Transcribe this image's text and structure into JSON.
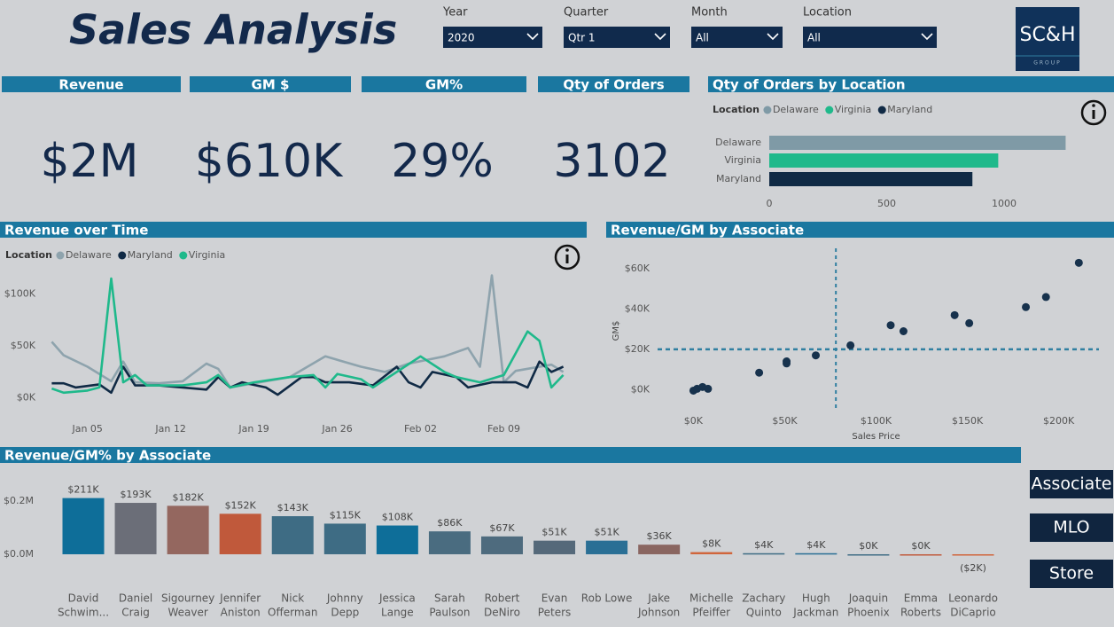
{
  "header": {
    "title": "Sales Analysis",
    "logo": "SC&H",
    "logo_subtitle": "GROUP"
  },
  "filters": [
    {
      "label": "Year",
      "value": "2020"
    },
    {
      "label": "Quarter",
      "value": "Qtr 1"
    },
    {
      "label": "Month",
      "value": "All"
    },
    {
      "label": "Location",
      "value": "All"
    }
  ],
  "kpis": [
    {
      "title": "Revenue",
      "value": "$2M"
    },
    {
      "title": "GM $",
      "value": "$610K"
    },
    {
      "title": "GM%",
      "value": "29%"
    },
    {
      "title": "Qty of Orders",
      "value": "3102"
    }
  ],
  "chart_data": [
    {
      "type": "bar",
      "orientation": "horizontal",
      "title": "Qty of Orders by Location",
      "legend_title": "Location",
      "categories": [
        "Delaware",
        "Virginia",
        "Maryland"
      ],
      "values": [
        1262,
        975,
        865
      ],
      "colors": [
        "#7f9aa6",
        "#1fb98b",
        "#102a45"
      ],
      "xlim": [
        0,
        1300
      ],
      "xticks": [
        0,
        500,
        1000
      ]
    },
    {
      "type": "line",
      "title": "Revenue over Time",
      "legend_title": "Location",
      "xlim": [
        1,
        46
      ],
      "xticks": [
        {
          "value": 5,
          "label": "Jan 05"
        },
        {
          "value": 12,
          "label": "Jan 12"
        },
        {
          "value": 19,
          "label": "Jan 19"
        },
        {
          "value": 26,
          "label": "Jan 26"
        },
        {
          "value": 33,
          "label": "Feb 02"
        },
        {
          "value": 40,
          "label": "Feb 09"
        }
      ],
      "ylim": [
        -14,
        127
      ],
      "yticks": [
        {
          "value": 0,
          "label": "$0K"
        },
        {
          "value": 50,
          "label": "$50K"
        },
        {
          "value": 100,
          "label": "$100K"
        }
      ],
      "series": [
        {
          "name": "Delaware",
          "color": "#8ea3ad",
          "x": [
            2,
            3,
            5,
            7,
            8,
            9,
            11,
            13,
            15,
            16,
            17,
            19,
            22,
            25,
            28,
            30,
            32,
            35,
            37,
            38,
            39,
            40,
            41,
            44,
            45
          ],
          "values": [
            54,
            41,
            30,
            16,
            35,
            15,
            14,
            16,
            33,
            28,
            10,
            14,
            20,
            40,
            30,
            25,
            33,
            40,
            48,
            30,
            118,
            15,
            26,
            32,
            25
          ]
        },
        {
          "name": "Maryland",
          "color": "#102a45",
          "x": [
            2,
            3,
            4,
            6,
            7,
            8,
            9,
            11,
            13,
            15,
            16,
            17,
            18,
            20,
            21,
            23,
            24,
            25,
            27,
            29,
            31,
            32,
            33,
            34,
            36,
            37,
            39,
            41,
            42,
            43,
            44,
            45
          ],
          "values": [
            14,
            14,
            10,
            13,
            5,
            30,
            12,
            12,
            10,
            8,
            20,
            10,
            15,
            10,
            3,
            20,
            20,
            15,
            15,
            12,
            30,
            15,
            10,
            25,
            20,
            10,
            15,
            15,
            10,
            35,
            25,
            30
          ]
        },
        {
          "name": "Virginia",
          "color": "#1fb98b",
          "x": [
            2,
            3,
            5,
            6,
            7,
            8,
            9,
            10,
            13,
            15,
            16,
            17,
            19,
            22,
            24,
            25,
            26,
            28,
            29,
            31,
            33,
            35,
            36,
            38,
            40,
            42,
            43,
            44,
            45
          ],
          "values": [
            9,
            5,
            7,
            10,
            115,
            15,
            22,
            12,
            12,
            15,
            22,
            10,
            15,
            20,
            22,
            10,
            23,
            18,
            10,
            25,
            40,
            25,
            20,
            15,
            22,
            64,
            55,
            10,
            22
          ]
        }
      ]
    },
    {
      "type": "scatter",
      "title": "Revenue/GM by Associate",
      "xlabel": "Sales Price",
      "ylabel": "GM$",
      "x": [
        0,
        2,
        5,
        8,
        36,
        51,
        51,
        67,
        86,
        108,
        115,
        143,
        151,
        182,
        193,
        211
      ],
      "values": [
        -0.5,
        0.4,
        1.3,
        0.4,
        8.4,
        14,
        13,
        17,
        22,
        32,
        29,
        37,
        33,
        41,
        46,
        63
      ],
      "color": "#17324d",
      "x_reference": 78,
      "y_reference": 20,
      "reference_color": "#2f7fa0",
      "xlim": [
        -23,
        222
      ],
      "xticks": [
        {
          "value": 0,
          "label": "$0K"
        },
        {
          "value": 50,
          "label": "$50K"
        },
        {
          "value": 100,
          "label": "$100K"
        },
        {
          "value": 150,
          "label": "$150K"
        },
        {
          "value": 200,
          "label": "$200K"
        }
      ],
      "ylim": [
        -10,
        68
      ],
      "yticks": [
        {
          "value": 0,
          "label": "$0K"
        },
        {
          "value": 20,
          "label": "$20K"
        },
        {
          "value": 40,
          "label": "$40K"
        },
        {
          "value": 60,
          "label": "$60K"
        }
      ]
    },
    {
      "type": "bar",
      "orientation": "vertical",
      "title": "Revenue/GM% by Associate",
      "categories": [
        [
          "David",
          "Schwim..."
        ],
        [
          "Daniel",
          "Craig"
        ],
        [
          "Sigourney",
          "Weaver"
        ],
        [
          "Jennifer",
          "Aniston"
        ],
        [
          "Nick",
          "Offerman"
        ],
        [
          "Johnny",
          "Depp"
        ],
        [
          "Jessica",
          "Lange"
        ],
        [
          "Sarah",
          "Paulson"
        ],
        [
          "Robert",
          "DeNiro"
        ],
        [
          "Evan",
          "Peters"
        ],
        [
          "Rob Lowe"
        ],
        [
          "Jake",
          "Johnson"
        ],
        [
          "Michelle",
          "Pfeiffer"
        ],
        [
          "Zachary",
          "Quinto"
        ],
        [
          "Hugh",
          "Jackman"
        ],
        [
          "Joaquin",
          "Phoenix"
        ],
        [
          "Emma",
          "Roberts"
        ],
        [
          "Leonardo",
          "DiCaprio"
        ]
      ],
      "values": [
        211,
        193,
        182,
        152,
        143,
        115,
        108,
        86,
        67,
        51,
        51,
        36,
        8,
        4,
        4,
        0,
        0,
        -2
      ],
      "value_labels": [
        "$211K",
        "$193K",
        "$182K",
        "$152K",
        "$143K",
        "$115K",
        "$108K",
        "$86K",
        "$67K",
        "$51K",
        "$51K",
        "$36K",
        "$8K",
        "$4K",
        "$4K",
        "$0K",
        "$0K",
        "($2K)"
      ],
      "colors": [
        "#0e6e99",
        "#6b6e78",
        "#94675f",
        "#c0593b",
        "#3e6c84",
        "#3e6c84",
        "#0e6e99",
        "#4a6c80",
        "#4e6b7e",
        "#55697a",
        "#2a6f95",
        "#8a6661",
        "#d0643a",
        "#3e6c84",
        "#2a6f95",
        "#3e6c84",
        "#c0593b",
        "#d0643a"
      ],
      "ylim": [
        -50,
        283
      ],
      "yticks": [
        {
          "value": 0,
          "label": "$0.0M"
        },
        {
          "value": 200,
          "label": "$0.2M"
        }
      ]
    }
  ],
  "buttons": [
    "Associate",
    "MLO",
    "Store"
  ]
}
